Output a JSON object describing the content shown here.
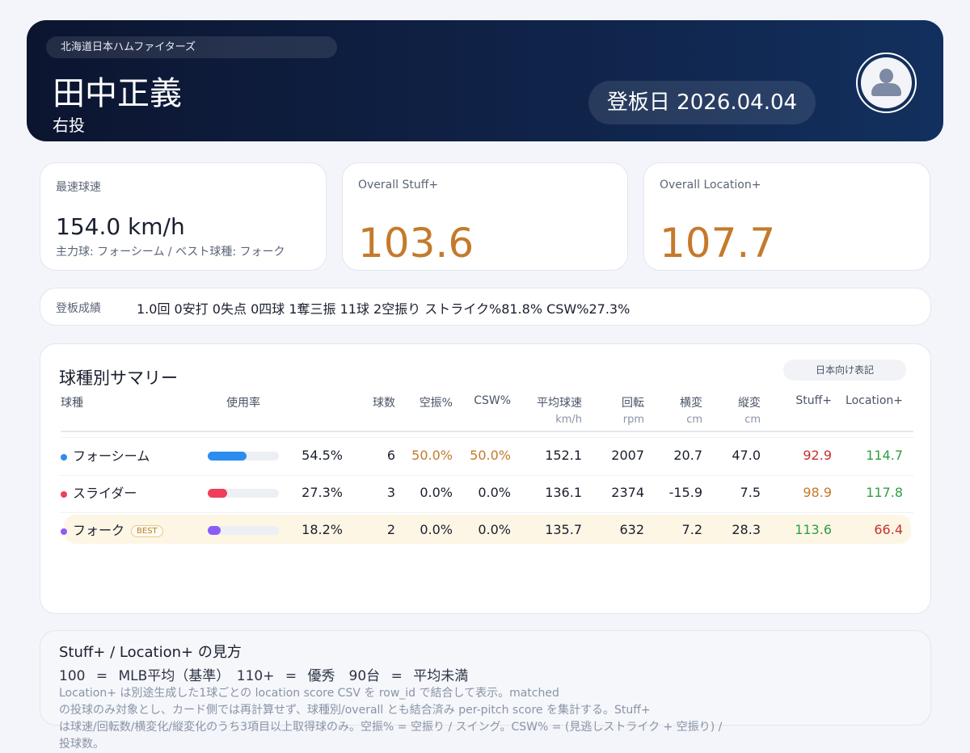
{
  "header": {
    "team": "北海道日本ハムファイターズ",
    "name": "田中正義",
    "hand": "右投",
    "date": "登板日 2026.04.04"
  },
  "cards": [
    {
      "label": "最速球速",
      "value": "154.0 km/h",
      "sub": "主力球: フォーシーム / ベスト球種: フォーク"
    },
    {
      "label": "Overall Stuff+",
      "value": "103.6"
    },
    {
      "label": "Overall Location+",
      "value": "107.7"
    }
  ],
  "record": {
    "label": "登板成績",
    "value": "1.0回 0安打 0失点 0四球 1奪三振 11球 2空振り ストライク%81.8% CSW%27.3%"
  },
  "summary": {
    "title": "球種別サマリー",
    "toggle": "日本向け表記",
    "columns": [
      {
        "h": "球種",
        "u": ""
      },
      {
        "h": "使用率",
        "u": ""
      },
      {
        "h": "",
        "u": ""
      },
      {
        "h": "球数",
        "u": ""
      },
      {
        "h": "空振%",
        "u": ""
      },
      {
        "h": "CSW%",
        "u": ""
      },
      {
        "h": "平均球速",
        "u": "km/h"
      },
      {
        "h": "回転",
        "u": "rpm"
      },
      {
        "h": "横変",
        "u": "cm"
      },
      {
        "h": "縦変",
        "u": "cm"
      },
      {
        "h": "Stuff+",
        "u": ""
      },
      {
        "h": "Location+",
        "u": ""
      }
    ],
    "rows": [
      {
        "pitch": "フォーシーム",
        "color": "#2d8cf0",
        "usage": 54.5,
        "usage_text": "54.5%",
        "count": "6",
        "whiff": "50.0%",
        "csw": "50.0%",
        "velo": "152.1",
        "spin": "2007",
        "hb": "20.7",
        "vb": "47.0",
        "stuff": "92.9",
        "loc": "114.7",
        "whiff_color": "#c47a2c",
        "csw_color": "#c47a2c",
        "stuff_color": "#c53030",
        "loc_color": "#2f9e44"
      },
      {
        "pitch": "スライダー",
        "color": "#f03e5a",
        "usage": 27.3,
        "usage_text": "27.3%",
        "count": "3",
        "whiff": "0.0%",
        "csw": "0.0%",
        "velo": "136.1",
        "spin": "2374",
        "hb": "-15.9",
        "vb": "7.5",
        "stuff": "98.9",
        "loc": "117.8",
        "whiff_color": "#1a1f2e",
        "csw_color": "#1a1f2e",
        "stuff_color": "#c47a2c",
        "loc_color": "#2f9e44"
      },
      {
        "pitch": "フォーク",
        "badge": "BEST",
        "color": "#8b5cf6",
        "usage": 18.2,
        "usage_text": "18.2%",
        "count": "2",
        "whiff": "0.0%",
        "csw": "0.0%",
        "velo": "135.7",
        "spin": "632",
        "hb": "7.2",
        "vb": "28.3",
        "stuff": "113.6",
        "loc": "66.4",
        "whiff_color": "#1a1f2e",
        "csw_color": "#1a1f2e",
        "stuff_color": "#2f9e44",
        "loc_color": "#c53030"
      }
    ]
  },
  "explain": {
    "title": "Stuff+ / Location+ の見方",
    "scale": "100 = MLB平均（基準）　110+ = 優秀　90台 = 平均未満",
    "note": "Location+ は別途生成した1球ごとの location score CSV を row_id で結合して表示。matched\nの投球のみ対象とし、カード側では再計算せず、球種別/overall とも結合済み per-pitch score を集計する。Stuff+\nは球速/回転数/横変化/縦変化のうち3項目以上取得球のみ。空振% = 空振り / スイング。CSW% = (見逃しストライク + 空振り) / 投球数。"
  }
}
